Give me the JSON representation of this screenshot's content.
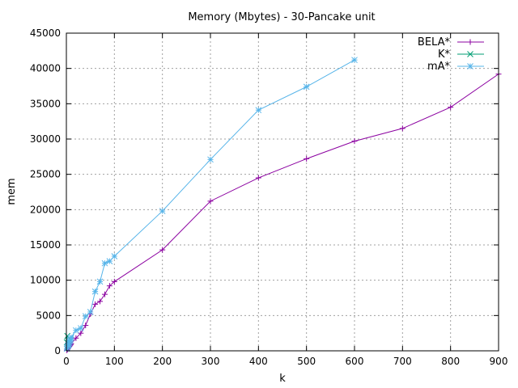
{
  "chart_data": {
    "type": "line",
    "title": "Memory (Mbytes) - 30-Pancake unit",
    "xlabel": "k",
    "ylabel": "mem",
    "xlim": [
      0,
      900
    ],
    "ylim": [
      0,
      45000
    ],
    "xticks": [
      0,
      100,
      200,
      300,
      400,
      500,
      600,
      700,
      800,
      900
    ],
    "yticks": [
      0,
      5000,
      10000,
      15000,
      20000,
      25000,
      30000,
      35000,
      40000,
      45000
    ],
    "grid": true,
    "legend_position": "top-right",
    "series": [
      {
        "name": "BELA*",
        "color": "#8b00a0",
        "marker": "plus",
        "x": [
          1,
          2,
          3,
          4,
          5,
          6,
          7,
          8,
          9,
          10,
          20,
          30,
          40,
          50,
          60,
          70,
          80,
          90,
          100,
          200,
          300,
          400,
          500,
          600,
          700,
          800,
          900
        ],
        "y": [
          80,
          200,
          300,
          400,
          500,
          600,
          700,
          800,
          900,
          1000,
          1800,
          2500,
          3600,
          5200,
          6600,
          7000,
          8000,
          9200,
          9800,
          14300,
          21200,
          24500,
          27200,
          29700,
          31500,
          34500,
          39200
        ]
      },
      {
        "name": "K*",
        "color": "#009e73",
        "marker": "cross",
        "x": [
          1,
          2
        ],
        "y": [
          1200,
          2100
        ]
      },
      {
        "name": "mA*",
        "color": "#56b4e9",
        "marker": "star",
        "x": [
          1,
          2,
          3,
          4,
          5,
          6,
          7,
          8,
          9,
          10,
          20,
          30,
          40,
          50,
          60,
          70,
          80,
          90,
          100,
          200,
          300,
          400,
          500,
          600
        ],
        "y": [
          300,
          500,
          700,
          800,
          900,
          1100,
          1300,
          1500,
          1700,
          1900,
          2900,
          3200,
          4900,
          5500,
          8400,
          9800,
          12400,
          12700,
          13400,
          19800,
          27100,
          34100,
          37400,
          41200
        ]
      }
    ]
  }
}
